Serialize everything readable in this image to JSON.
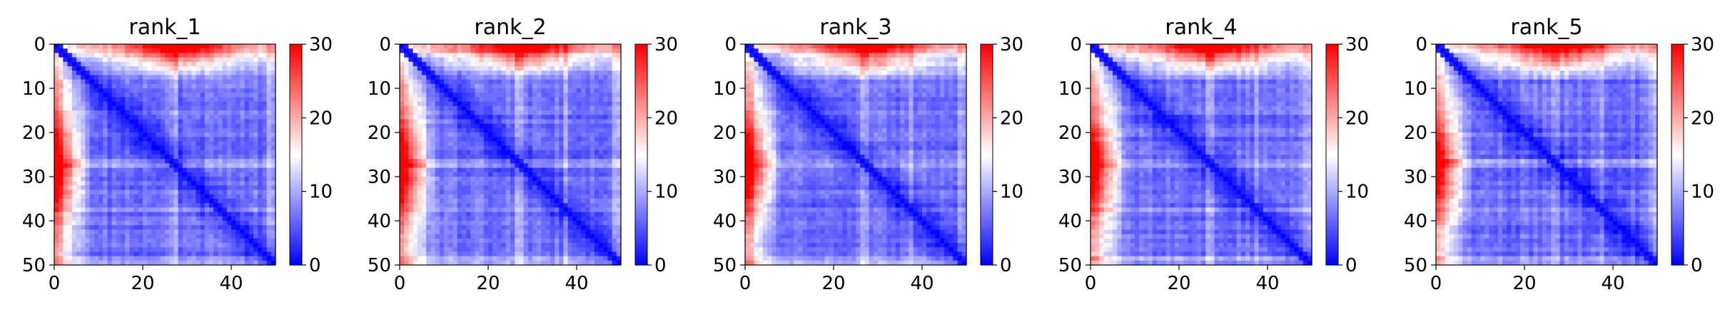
{
  "chart_data": [
    {
      "type": "heatmap",
      "title": "rank_1",
      "matrix_size": 50,
      "xlim": [
        0,
        50
      ],
      "ylim": [
        50,
        0
      ],
      "xticks": [
        0,
        20,
        40
      ],
      "yticks": [
        0,
        10,
        20,
        30,
        40,
        50
      ],
      "colormap": "bwr",
      "colorbar": {
        "range": [
          0,
          30
        ],
        "ticks": [
          0,
          10,
          20,
          30
        ]
      },
      "description": "Pairwise error matrix: near-zero diagonal, mostly blue, rows 0-7 elevated (red, peak ~30 near columns 20-35), lighter bands near rows 26 and 37"
    },
    {
      "type": "heatmap",
      "title": "rank_2",
      "matrix_size": 50,
      "xlim": [
        0,
        50
      ],
      "ylim": [
        50,
        0
      ],
      "xticks": [
        0,
        20,
        40
      ],
      "yticks": [
        0,
        10,
        20,
        30,
        40,
        50
      ],
      "colormap": "bwr",
      "colorbar": {
        "range": [
          0,
          30
        ],
        "ticks": [
          0,
          10,
          20,
          30
        ]
      }
    },
    {
      "type": "heatmap",
      "title": "rank_3",
      "matrix_size": 50,
      "xlim": [
        0,
        50
      ],
      "ylim": [
        50,
        0
      ],
      "xticks": [
        0,
        20,
        40
      ],
      "yticks": [
        0,
        10,
        20,
        30,
        40,
        50
      ],
      "colormap": "bwr",
      "colorbar": {
        "range": [
          0,
          30
        ],
        "ticks": [
          0,
          10,
          20,
          30
        ]
      }
    },
    {
      "type": "heatmap",
      "title": "rank_4",
      "matrix_size": 50,
      "xlim": [
        0,
        50
      ],
      "ylim": [
        50,
        0
      ],
      "xticks": [
        0,
        20,
        40
      ],
      "yticks": [
        0,
        10,
        20,
        30,
        40,
        50
      ],
      "colormap": "bwr",
      "colorbar": {
        "range": [
          0,
          30
        ],
        "ticks": [
          0,
          10,
          20,
          30
        ]
      }
    },
    {
      "type": "heatmap",
      "title": "rank_5",
      "matrix_size": 50,
      "xlim": [
        0,
        50
      ],
      "ylim": [
        50,
        0
      ],
      "xticks": [
        0,
        20,
        40
      ],
      "yticks": [
        0,
        10,
        20,
        30,
        40,
        50
      ],
      "colormap": "bwr",
      "colorbar": {
        "range": [
          0,
          30
        ],
        "ticks": [
          0,
          10,
          20,
          30
        ]
      }
    }
  ],
  "colors": {
    "low": "#0000ff",
    "mid": "#ffffff",
    "high": "#ff0000"
  }
}
